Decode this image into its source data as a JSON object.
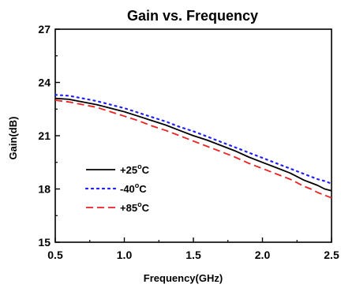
{
  "chart_data": {
    "type": "line",
    "title": "Gain vs. Frequency",
    "xlabel": "Frequency(GHz)",
    "ylabel": "Gain(dB)",
    "xlim": [
      0.5,
      2.5
    ],
    "ylim": [
      15,
      27
    ],
    "x_ticks": [
      "0.5",
      "1.0",
      "1.5",
      "2.0",
      "2.5"
    ],
    "y_ticks": [
      "15",
      "18",
      "21",
      "24",
      "27"
    ],
    "grid": false,
    "legend_position": "lower-left",
    "series": [
      {
        "name": "+25°C",
        "label_main": "+25",
        "label_sup": "o",
        "label_unit": "C",
        "color": "#000000",
        "style": "solid",
        "x": [
          0.5,
          0.6,
          0.7,
          0.8,
          0.9,
          1.0,
          1.1,
          1.2,
          1.3,
          1.4,
          1.5,
          1.6,
          1.7,
          1.8,
          1.9,
          2.0,
          2.1,
          2.2,
          2.25,
          2.3,
          2.35,
          2.4,
          2.45,
          2.5
        ],
        "y": [
          23.1,
          23.05,
          22.9,
          22.75,
          22.55,
          22.35,
          22.1,
          21.85,
          21.6,
          21.3,
          21.0,
          20.75,
          20.45,
          20.15,
          19.8,
          19.5,
          19.2,
          18.9,
          18.7,
          18.5,
          18.35,
          18.2,
          18.0,
          17.9
        ]
      },
      {
        "name": "-40°C",
        "label_main": "-40",
        "label_sup": "o",
        "label_unit": "C",
        "color": "#2020ff",
        "style": "dotted",
        "x": [
          0.5,
          0.6,
          0.7,
          0.8,
          0.9,
          1.0,
          1.1,
          1.2,
          1.3,
          1.4,
          1.5,
          1.6,
          1.7,
          1.8,
          1.9,
          2.0,
          2.1,
          2.2,
          2.25,
          2.3,
          2.35,
          2.4,
          2.45,
          2.5
        ],
        "y": [
          23.3,
          23.25,
          23.1,
          22.95,
          22.75,
          22.55,
          22.3,
          22.05,
          21.8,
          21.5,
          21.25,
          20.95,
          20.65,
          20.35,
          20.05,
          19.75,
          19.45,
          19.15,
          19.0,
          18.85,
          18.7,
          18.55,
          18.45,
          18.3
        ]
      },
      {
        "name": "+85°C",
        "label_main": "+85",
        "label_sup": "o",
        "label_unit": "C",
        "color": "#ee2020",
        "style": "dashed",
        "x": [
          0.5,
          0.6,
          0.7,
          0.8,
          0.9,
          1.0,
          1.1,
          1.2,
          1.3,
          1.4,
          1.5,
          1.6,
          1.7,
          1.8,
          1.9,
          2.0,
          2.1,
          2.2,
          2.25,
          2.3,
          2.35,
          2.4,
          2.45,
          2.5
        ],
        "y": [
          23.0,
          22.9,
          22.75,
          22.6,
          22.35,
          22.1,
          21.85,
          21.55,
          21.3,
          21.0,
          20.7,
          20.4,
          20.1,
          19.8,
          19.45,
          19.15,
          18.85,
          18.55,
          18.35,
          18.15,
          18.0,
          17.8,
          17.65,
          17.5
        ]
      }
    ]
  }
}
